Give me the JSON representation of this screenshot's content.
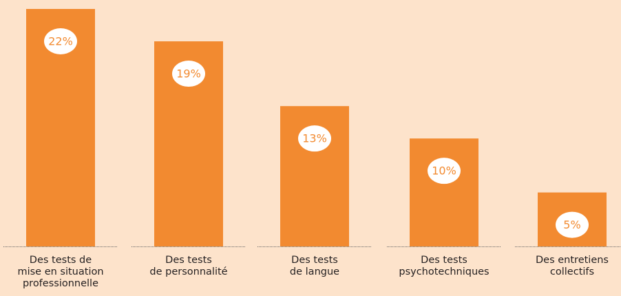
{
  "chart_data": {
    "type": "bar",
    "categories": [
      "Des tests de\nmise en situation\nprofessionnelle",
      "Des tests\nde personnalité",
      "Des tests\nde langue",
      "Des tests\npsychotechniques",
      "Des entretiens\ncollectifs"
    ],
    "values": [
      22,
      19,
      13,
      10,
      5
    ],
    "value_labels": [
      "22%",
      "19%",
      "13%",
      "10%",
      "5%"
    ],
    "color": "#f28a30",
    "ylim": [
      0,
      22
    ]
  }
}
